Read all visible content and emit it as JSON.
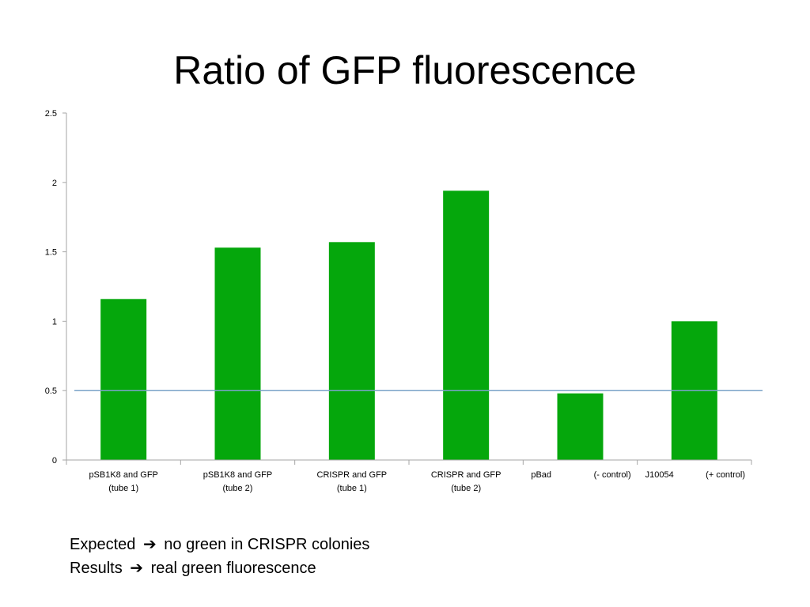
{
  "slide": {
    "title": "Ratio of GFP fluorescence"
  },
  "chart_data": {
    "type": "bar",
    "title": "",
    "xlabel": "",
    "ylabel": "",
    "categories": [
      [
        "pSB1K8 and GFP",
        "(tube 1)"
      ],
      [
        "pSB1K8 and GFP",
        "(tube 2)"
      ],
      [
        "CRISPR and GFP",
        "(tube 1)"
      ],
      [
        "CRISPR and GFP",
        "(tube 2)"
      ],
      [
        "pBad",
        "(- control)"
      ],
      [
        "J10054",
        "(+ control)"
      ]
    ],
    "values": [
      1.16,
      1.53,
      1.57,
      1.94,
      0.48,
      1.0
    ],
    "ylim": [
      0,
      2.5
    ],
    "yticks": [
      "0",
      "0.5",
      "1",
      "1.5",
      "2",
      "2.5"
    ],
    "reference_line": 0.5,
    "grid": false,
    "legend": "none",
    "colors": {
      "bar": "#05a70c",
      "reference_line": "#7ba3c8",
      "axis": "#a6a6a6"
    }
  },
  "notes": [
    {
      "before": "Expected",
      "arrow": "➔",
      "after": "no green in CRISPR colonies"
    },
    {
      "before": "Results",
      "arrow": "➔",
      "after": "real green fluorescence"
    }
  ]
}
